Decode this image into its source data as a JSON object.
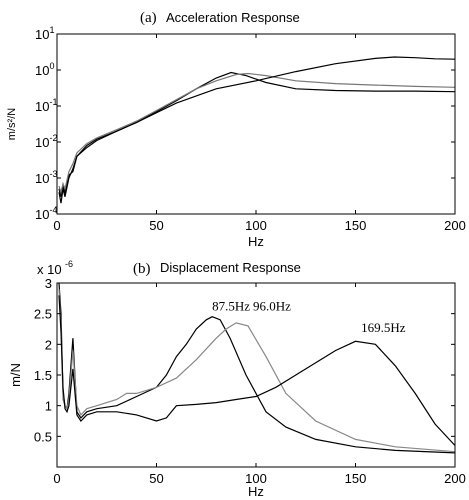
{
  "chart_data": [
    {
      "type": "line",
      "title_letter": "(a)",
      "title": "Acceleration Response",
      "xlabel": "Hz",
      "ylabel": "m/s²/N",
      "xlim": [
        0,
        200
      ],
      "ylim": [
        0.0001,
        10
      ],
      "yscale": "log",
      "grid": false,
      "xticks": [
        0,
        50,
        100,
        150,
        200
      ],
      "yticks": [
        {
          "value": 0.0001,
          "base": "10",
          "exp": "-4"
        },
        {
          "value": 0.001,
          "base": "10",
          "exp": "-3"
        },
        {
          "value": 0.01,
          "base": "10",
          "exp": "-2"
        },
        {
          "value": 0.1,
          "base": "10",
          "exp": "-1"
        },
        {
          "value": 1,
          "base": "10",
          "exp": "0"
        },
        {
          "value": 10,
          "base": "10",
          "exp": "1"
        }
      ],
      "series": [
        {
          "color": "#000000",
          "x": [
            1,
            2,
            3,
            4,
            6,
            8,
            10,
            15,
            20,
            30,
            40,
            50,
            60,
            70,
            80,
            87.5,
            95,
            105,
            120,
            140,
            160,
            180,
            200
          ],
          "y": [
            0.0005,
            0.0003,
            0.0006,
            0.0004,
            0.0012,
            0.0015,
            0.004,
            0.008,
            0.012,
            0.02,
            0.035,
            0.07,
            0.14,
            0.3,
            0.6,
            0.85,
            0.7,
            0.45,
            0.3,
            0.27,
            0.26,
            0.26,
            0.25
          ]
        },
        {
          "color": "#777777",
          "x": [
            1,
            2,
            3,
            4,
            6,
            8,
            10,
            15,
            20,
            30,
            40,
            50,
            60,
            70,
            80,
            90,
            96,
            105,
            120,
            140,
            160,
            180,
            200
          ],
          "y": [
            0.0006,
            0.0004,
            0.0007,
            0.0005,
            0.0015,
            0.0025,
            0.005,
            0.009,
            0.013,
            0.022,
            0.038,
            0.075,
            0.15,
            0.3,
            0.5,
            0.75,
            0.8,
            0.7,
            0.5,
            0.42,
            0.38,
            0.35,
            0.33
          ]
        },
        {
          "color": "#000000",
          "x": [
            1,
            2,
            3,
            4,
            6,
            8,
            10,
            15,
            20,
            30,
            40,
            50,
            60,
            80,
            100,
            120,
            140,
            160,
            169.5,
            180,
            190,
            200
          ],
          "y": [
            0.0004,
            0.0002,
            0.0005,
            0.0003,
            0.001,
            0.0018,
            0.004,
            0.007,
            0.011,
            0.02,
            0.035,
            0.065,
            0.12,
            0.3,
            0.5,
            0.9,
            1.5,
            2.1,
            2.3,
            2.2,
            2.05,
            2.0
          ]
        }
      ]
    },
    {
      "type": "line",
      "title_letter": "(b)",
      "title": "Displacement Response",
      "xlabel": "Hz",
      "ylabel": "m/N",
      "exponent_label": "x 10",
      "exponent_power": "-6",
      "xlim": [
        0,
        200
      ],
      "ylim": [
        0,
        3
      ],
      "grid": false,
      "xticks": [
        0,
        50,
        100,
        150,
        200
      ],
      "yticks": [
        0.5,
        1,
        1.5,
        2,
        2.5,
        3
      ],
      "annotations": [
        {
          "text": "87.5Hz",
          "x": 87.5,
          "y": 2.55
        },
        {
          "text": "96.0Hz",
          "x": 108,
          "y": 2.55
        },
        {
          "text": "169.5Hz",
          "x": 164,
          "y": 2.2
        }
      ],
      "series": [
        {
          "color": "#000000",
          "x": [
            1,
            2,
            3,
            4,
            5,
            6,
            8,
            10,
            12,
            15,
            20,
            30,
            40,
            50,
            55,
            60,
            65,
            70,
            75,
            78,
            82,
            87,
            95,
            105,
            115,
            130,
            150,
            170,
            200
          ],
          "y": [
            3.0,
            2.5,
            1.2,
            1.0,
            0.95,
            1.2,
            2.1,
            0.9,
            0.8,
            0.9,
            0.95,
            1.0,
            1.15,
            1.3,
            1.5,
            1.8,
            2.0,
            2.25,
            2.4,
            2.45,
            2.4,
            2.1,
            1.5,
            0.9,
            0.65,
            0.45,
            0.33,
            0.27,
            0.23
          ]
        },
        {
          "color": "#888888",
          "x": [
            1,
            2,
            3,
            4,
            5,
            6,
            8,
            10,
            12,
            15,
            20,
            30,
            35,
            40,
            50,
            60,
            70,
            80,
            85,
            90,
            96,
            105,
            115,
            130,
            150,
            170,
            200
          ],
          "y": [
            2.9,
            2.3,
            1.1,
            1.0,
            0.95,
            1.1,
            1.9,
            1.0,
            0.85,
            0.95,
            1.0,
            1.1,
            1.2,
            1.2,
            1.3,
            1.45,
            1.75,
            2.1,
            2.25,
            2.35,
            2.3,
            1.8,
            1.2,
            0.75,
            0.45,
            0.33,
            0.25
          ]
        },
        {
          "color": "#000000",
          "x": [
            1,
            2,
            3,
            4,
            5,
            6,
            8,
            10,
            12,
            15,
            20,
            30,
            40,
            50,
            55,
            60,
            70,
            80,
            90,
            100,
            110,
            120,
            130,
            140,
            150,
            160,
            170,
            180,
            190,
            200
          ],
          "y": [
            2.8,
            2.2,
            1.3,
            0.95,
            0.9,
            1.0,
            1.6,
            0.85,
            0.75,
            0.85,
            0.9,
            0.9,
            0.85,
            0.75,
            0.8,
            1.0,
            1.02,
            1.05,
            1.1,
            1.15,
            1.3,
            1.5,
            1.7,
            1.9,
            2.05,
            2.0,
            1.65,
            1.2,
            0.7,
            0.35
          ]
        }
      ]
    }
  ]
}
